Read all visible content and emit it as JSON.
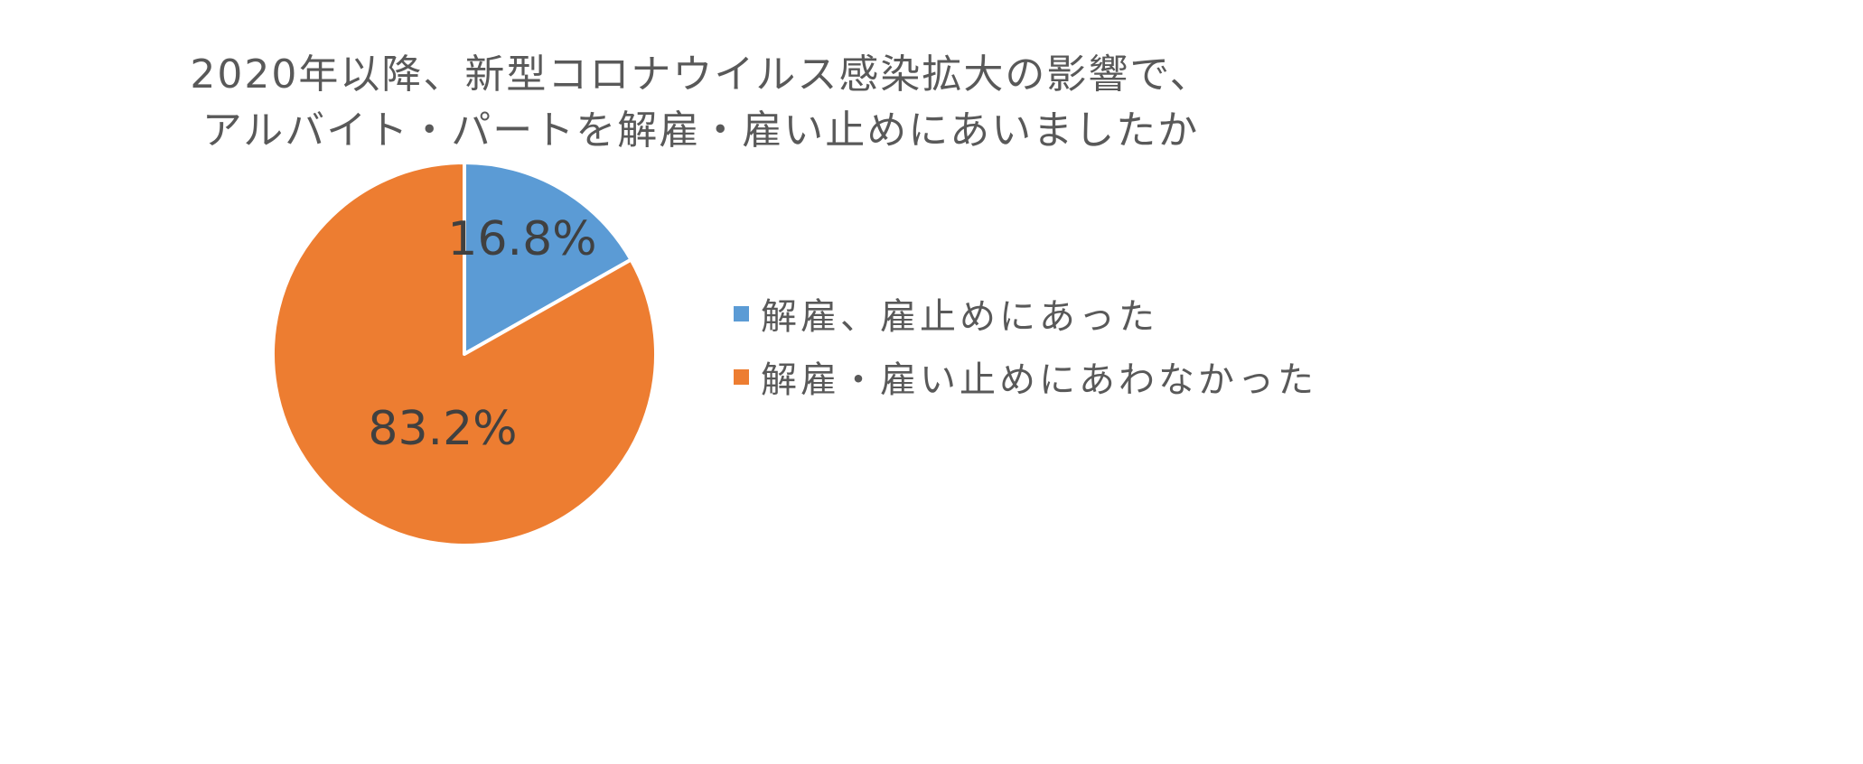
{
  "chart_data": {
    "type": "pie",
    "title": [
      "2020年以降、新型コロナウイルス感染拡大の影響で、",
      "アルバイト・パートを解雇・雇い止めにあいましたか"
    ],
    "categories": [
      "解雇、雇止めにあった",
      "解雇・雇い止めにあわなかった"
    ],
    "values": [
      16.8,
      83.2
    ],
    "data_labels": [
      "16.8%",
      "83.2%"
    ],
    "colors": [
      "#5B9BD5",
      "#ED7D31"
    ],
    "legend_position": "right"
  }
}
